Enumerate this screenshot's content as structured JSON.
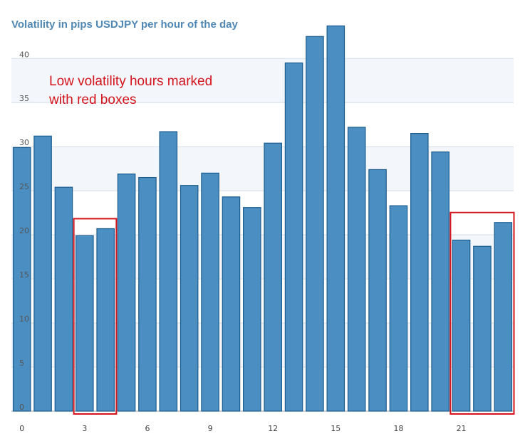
{
  "chart_data": {
    "type": "bar",
    "title": "Volatility in pips USDJPY per hour of the day",
    "annotation": [
      "Low volatility hours marked",
      "with red boxes"
    ],
    "categories": [
      "0",
      "1",
      "2",
      "3",
      "4",
      "5",
      "6",
      "7",
      "8",
      "9",
      "10",
      "11",
      "12",
      "13",
      "14",
      "15",
      "16",
      "17",
      "18",
      "19",
      "20",
      "21",
      "22",
      "23"
    ],
    "values": [
      29.9,
      31.2,
      25.4,
      19.9,
      20.7,
      26.9,
      26.5,
      31.7,
      25.6,
      27.0,
      24.3,
      23.1,
      30.4,
      39.5,
      42.5,
      43.7,
      32.2,
      27.4,
      23.3,
      31.5,
      29.4,
      19.4,
      18.7,
      21.4
    ],
    "xticks": [
      "0",
      "3",
      "6",
      "9",
      "12",
      "15",
      "18",
      "21"
    ],
    "yticks": [
      "0",
      "5",
      "10",
      "15",
      "20",
      "25",
      "30",
      "35",
      "40"
    ],
    "ylim": [
      0,
      44.7
    ],
    "grid": true,
    "bar_color": "#4a8ec2",
    "bar_edge_color": "#1c5d8e",
    "highlight_color": "#d4141c",
    "highlights": [
      {
        "from": "3",
        "to": "4"
      },
      {
        "from": "21",
        "to": "23"
      }
    ]
  }
}
